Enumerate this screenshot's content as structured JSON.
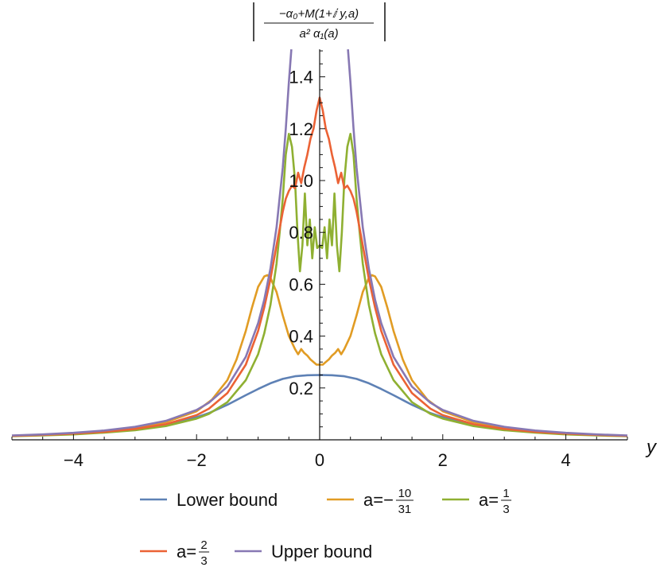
{
  "chart_data": {
    "type": "line",
    "ylabel": {
      "numerator": "−α₀+M(1+ⅈ y,a)",
      "denominator": "a² α₁(a)"
    },
    "xlabel": "y",
    "xlim": [
      -5,
      5
    ],
    "ylim": [
      0,
      1.5
    ],
    "x_ticks": [
      -4,
      -2,
      0,
      2,
      4
    ],
    "x_tick_labels": [
      "−4",
      "−2",
      "0",
      "2",
      "4"
    ],
    "y_ticks": [
      0.2,
      0.4,
      0.6,
      0.8,
      1.0,
      1.2,
      1.4
    ],
    "y_tick_labels": [
      "0.2",
      "0.4",
      "0.6",
      "0.8",
      "1.0",
      "1.2",
      "1.4"
    ],
    "grid": false,
    "legend_position": "bottom",
    "series": [
      {
        "name": "Lower bound",
        "color": "#5E81B5",
        "x": [
          0,
          0.2,
          0.4,
          0.6,
          0.8,
          1.0,
          1.2,
          1.5,
          1.8,
          2.0,
          2.5,
          3.0,
          3.5,
          4.0,
          4.5,
          5.0
        ],
        "y": [
          0.25,
          0.249,
          0.245,
          0.235,
          0.218,
          0.196,
          0.172,
          0.135,
          0.103,
          0.087,
          0.058,
          0.04,
          0.03,
          0.023,
          0.018,
          0.015
        ]
      },
      {
        "name": "a=−10/31",
        "color": "#E19C24",
        "x": [
          0,
          0.05,
          0.1,
          0.15,
          0.2,
          0.25,
          0.3,
          0.35,
          0.4,
          0.5,
          0.6,
          0.7,
          0.8,
          0.85,
          0.9,
          1.0,
          1.1,
          1.2,
          1.35,
          1.5,
          1.75,
          2.0,
          2.5,
          3.0,
          3.5,
          4.0,
          4.5,
          5.0
        ],
        "y": [
          0.29,
          0.29,
          0.3,
          0.31,
          0.325,
          0.335,
          0.35,
          0.33,
          0.35,
          0.4,
          0.48,
          0.57,
          0.625,
          0.635,
          0.63,
          0.59,
          0.51,
          0.42,
          0.31,
          0.23,
          0.155,
          0.11,
          0.068,
          0.046,
          0.034,
          0.026,
          0.02,
          0.016
        ]
      },
      {
        "name": "a=1/3",
        "color": "#8FB032",
        "x": [
          0,
          0.04,
          0.08,
          0.12,
          0.16,
          0.2,
          0.24,
          0.28,
          0.32,
          0.36,
          0.4,
          0.45,
          0.5,
          0.55,
          0.6,
          0.65,
          0.7,
          0.8,
          0.9,
          1.0,
          1.2,
          1.5,
          1.8,
          2.0,
          2.5,
          3.0,
          3.5,
          4.0,
          4.5,
          5.0
        ],
        "y": [
          0.75,
          0.74,
          0.82,
          0.7,
          0.85,
          0.75,
          0.95,
          0.75,
          0.65,
          0.8,
          1.0,
          1.13,
          1.18,
          1.1,
          0.93,
          0.8,
          0.68,
          0.52,
          0.41,
          0.33,
          0.23,
          0.145,
          0.1,
          0.082,
          0.053,
          0.037,
          0.028,
          0.021,
          0.017,
          0.014
        ]
      },
      {
        "name": "a=2/3",
        "color": "#EB6235",
        "x": [
          0,
          0.05,
          0.1,
          0.15,
          0.2,
          0.25,
          0.3,
          0.35,
          0.4,
          0.45,
          0.5,
          0.55,
          0.6,
          0.7,
          0.8,
          0.9,
          1.0,
          1.2,
          1.5,
          1.8,
          2.0,
          2.5,
          3.0,
          3.5,
          4.0,
          4.5,
          5.0
        ],
        "y": [
          1.32,
          1.27,
          1.2,
          1.16,
          1.1,
          1.05,
          0.99,
          1.03,
          0.97,
          0.98,
          0.96,
          0.93,
          0.88,
          0.75,
          0.62,
          0.51,
          0.42,
          0.29,
          0.18,
          0.12,
          0.095,
          0.06,
          0.042,
          0.031,
          0.024,
          0.019,
          0.015
        ]
      },
      {
        "name": "Upper bound",
        "color": "#8778B3",
        "x": [
          0.46,
          0.5,
          0.55,
          0.6,
          0.7,
          0.8,
          0.9,
          1.0,
          1.2,
          1.5,
          1.8,
          2.0,
          2.5,
          3.0,
          3.5,
          4.0,
          4.5,
          5.0
        ],
        "y": [
          1.52,
          1.38,
          1.2,
          1.05,
          0.82,
          0.66,
          0.54,
          0.45,
          0.32,
          0.205,
          0.143,
          0.115,
          0.073,
          0.05,
          0.036,
          0.027,
          0.021,
          0.017
        ]
      }
    ],
    "legend": [
      {
        "label": "Lower bound",
        "color": "#5E81B5"
      },
      {
        "label": "a=−",
        "frac_num": "10",
        "frac_den": "31",
        "color": "#E19C24"
      },
      {
        "label": "a=",
        "frac_num": "1",
        "frac_den": "3",
        "color": "#8FB032"
      },
      {
        "label": "a=",
        "frac_num": "2",
        "frac_den": "3",
        "color": "#EB6235"
      },
      {
        "label": "Upper bound",
        "color": "#8778B3"
      }
    ]
  }
}
